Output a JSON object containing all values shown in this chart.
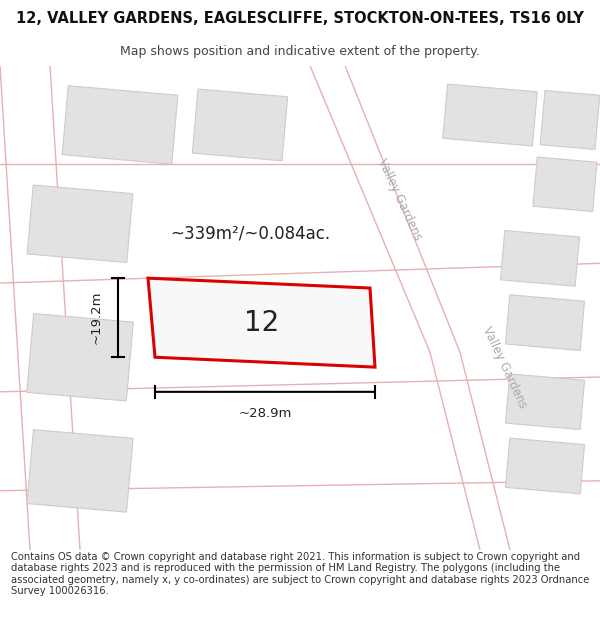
{
  "title": "12, VALLEY GARDENS, EAGLESCLIFFE, STOCKTON-ON-TEES, TS16 0LY",
  "subtitle": "Map shows position and indicative extent of the property.",
  "footer": "Contains OS data © Crown copyright and database right 2021. This information is subject to Crown copyright and database rights 2023 and is reproduced with the permission of HM Land Registry. The polygons (including the associated geometry, namely x, y co-ordinates) are subject to Crown copyright and database rights 2023 Ordnance Survey 100026316.",
  "area_label": "~339m²/~0.084ac.",
  "width_label": "~28.9m",
  "height_label": "~19.2m",
  "plot_number": "12",
  "bg_color": "#ffffff",
  "map_bg": "#f7f7f7",
  "road_line_color": "#e8b0b0",
  "building_fill": "#e2e2e2",
  "building_edge": "#cccccc",
  "highlight_color": "#dd0000",
  "highlight_fill": "#f8f8f8",
  "text_dark": "#222222",
  "text_road": "#aaaaaa",
  "title_fontsize": 10.5,
  "subtitle_fontsize": 9,
  "footer_fontsize": 7.2,
  "area_fontsize": 12,
  "plot_fontsize": 20,
  "meas_fontsize": 9.5,
  "road_fontsize": 8.5
}
